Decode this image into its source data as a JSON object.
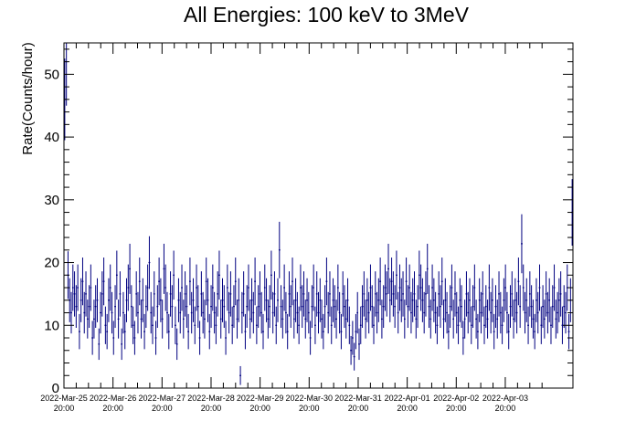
{
  "chart_data": {
    "type": "scatter",
    "title": "All Energies:  100 keV to 3MeV",
    "xlabel": "",
    "ylabel": "Rate(Counts/hour)",
    "ylim": [
      0,
      55
    ],
    "xlim": [
      0,
      10.38
    ],
    "x_unit": "days since 2022-Mar-25 20:00",
    "yticks": [
      0,
      10,
      20,
      30,
      40,
      50
    ],
    "xtick_labels": [
      {
        "date": "2022-Mar-25",
        "time": "20:00"
      },
      {
        "date": "2022-Mar-26",
        "time": "20:00"
      },
      {
        "date": "2022-Mar-27",
        "time": "20:00"
      },
      {
        "date": "2022-Mar-28",
        "time": "20:00"
      },
      {
        "date": "2022-Mar-29",
        "time": "20:00"
      },
      {
        "date": "2022-Mar-30",
        "time": "20:00"
      },
      {
        "date": "2022-Mar-31",
        "time": "20:00"
      },
      {
        "date": "2022-Apr-01",
        "time": "20:00"
      },
      {
        "date": "2022-Apr-02",
        "time": "20:00"
      },
      {
        "date": "2022-Apr-03",
        "time": "20:00"
      }
    ],
    "grid": false,
    "series": [
      {
        "name": "",
        "marker": "point with error bars",
        "color": "#000080",
        "values": [
          46,
          52,
          18,
          14,
          12,
          16,
          15,
          13,
          16,
          9,
          14,
          17,
          12,
          15,
          11,
          13,
          16,
          8,
          11,
          13,
          14,
          7,
          12,
          15,
          17,
          10,
          9,
          14,
          16,
          12,
          8,
          13,
          18,
          11,
          15,
          7,
          12,
          9,
          14,
          16,
          19,
          13,
          10,
          8,
          15,
          12,
          17,
          11,
          14,
          9,
          13,
          16,
          20,
          12,
          10,
          15,
          8,
          13,
          17,
          14,
          11,
          19,
          16,
          12,
          9,
          15,
          13,
          18,
          10,
          7,
          14,
          12,
          16,
          11,
          15,
          13,
          9,
          17,
          12,
          14,
          10,
          16,
          13,
          8,
          15,
          12,
          11,
          17,
          14,
          9,
          13,
          16,
          12,
          10,
          15,
          18,
          11,
          14,
          13,
          8,
          16,
          12,
          15,
          10,
          13,
          17,
          11,
          14,
          2,
          12,
          15,
          9,
          13,
          16,
          11,
          14,
          12,
          17,
          10,
          13,
          15,
          12,
          9,
          16,
          14,
          11,
          13,
          18,
          12,
          15,
          10,
          14,
          22,
          13,
          11,
          16,
          12,
          9,
          15,
          13,
          17,
          11,
          14,
          12,
          10,
          16,
          13,
          15,
          11,
          14,
          12,
          8,
          13,
          16,
          10,
          15,
          12,
          14,
          11,
          9,
          13,
          17,
          12,
          15,
          10,
          14,
          13,
          11,
          16,
          12,
          9,
          15,
          13,
          11,
          14,
          10,
          6,
          8,
          5,
          9,
          12,
          7,
          10,
          13,
          15,
          11,
          14,
          12,
          16,
          13,
          10,
          15,
          12,
          14,
          17,
          11,
          13,
          16,
          15,
          19,
          14,
          17,
          15,
          13,
          18,
          12,
          16,
          14,
          15,
          11,
          17,
          13,
          16,
          12,
          14,
          15,
          11,
          13,
          18,
          16,
          14,
          12,
          15,
          19,
          13,
          11,
          16,
          14,
          12,
          10,
          15,
          13,
          17,
          11,
          14,
          12,
          9,
          13,
          16,
          11,
          15,
          12,
          10,
          14,
          13,
          8,
          11,
          15,
          12,
          14,
          10,
          13,
          16,
          11,
          9,
          14,
          12,
          15,
          10,
          13,
          11,
          16,
          12,
          14,
          9,
          13,
          11,
          15,
          12,
          10,
          14,
          16,
          12,
          9,
          13,
          15,
          11,
          14,
          12,
          17,
          13,
          23,
          16,
          12,
          14,
          10,
          15,
          13,
          11,
          9,
          14,
          12,
          16,
          10,
          13,
          11,
          15,
          12,
          14,
          10,
          13,
          16,
          11,
          12,
          14,
          15,
          10,
          13,
          12,
          16,
          9,
          14,
          28
        ],
        "errors": [
          6.5,
          7.0,
          3.8,
          3.5,
          3.3,
          3.7,
          3.6,
          3.4,
          3.7,
          2.8,
          3.5,
          3.8,
          3.3,
          3.6,
          3.1,
          3.4,
          3.7,
          2.7,
          3.1,
          3.4,
          3.5,
          2.5,
          3.3,
          3.6,
          3.8,
          3.0,
          2.8,
          3.5,
          3.7,
          3.3,
          2.7,
          3.4,
          3.9,
          3.1,
          3.6,
          2.5,
          3.3,
          2.8,
          3.5,
          3.7,
          4.0,
          3.4,
          3.0,
          2.7,
          3.6,
          3.3,
          3.8,
          3.1,
          3.5,
          2.8,
          3.4,
          3.7,
          4.2,
          3.3,
          3.0,
          3.6,
          2.7,
          3.4,
          3.8,
          3.5,
          3.1,
          4.0,
          3.7,
          3.3,
          2.8,
          3.6,
          3.4,
          3.9,
          3.0,
          2.5,
          3.5,
          3.3,
          3.7,
          3.1,
          3.6,
          3.4,
          2.8,
          3.8,
          3.3,
          3.5,
          3.0,
          3.7,
          3.4,
          2.7,
          3.6,
          3.3,
          3.1,
          3.8,
          3.5,
          2.8,
          3.4,
          3.7,
          3.3,
          3.0,
          3.6,
          3.9,
          3.1,
          3.5,
          3.4,
          2.7,
          3.7,
          3.3,
          3.6,
          3.0,
          3.4,
          3.8,
          3.1,
          3.5,
          1.5,
          3.3,
          3.6,
          2.8,
          3.4,
          3.7,
          3.1,
          3.5,
          3.3,
          3.8,
          3.0,
          3.4,
          3.6,
          3.3,
          2.8,
          3.7,
          3.5,
          3.1,
          3.4,
          3.9,
          3.3,
          3.6,
          3.0,
          3.5,
          4.5,
          3.4,
          3.1,
          3.7,
          3.3,
          2.8,
          3.6,
          3.4,
          3.8,
          3.1,
          3.5,
          3.3,
          3.0,
          3.7,
          3.4,
          3.6,
          3.1,
          3.5,
          3.3,
          2.7,
          3.4,
          3.7,
          3.0,
          3.6,
          3.3,
          3.5,
          3.1,
          2.8,
          3.4,
          3.8,
          3.3,
          3.6,
          3.0,
          3.5,
          3.4,
          3.1,
          3.7,
          3.3,
          2.8,
          3.6,
          3.4,
          3.1,
          3.5,
          3.0,
          2.3,
          2.7,
          2.2,
          2.8,
          3.3,
          2.5,
          3.0,
          3.4,
          3.6,
          3.1,
          3.5,
          3.3,
          3.7,
          3.4,
          3.0,
          3.6,
          3.3,
          3.5,
          3.8,
          3.1,
          3.4,
          3.7,
          3.6,
          4.0,
          3.5,
          3.8,
          3.6,
          3.4,
          3.9,
          3.3,
          3.7,
          3.5,
          3.6,
          3.1,
          3.8,
          3.4,
          3.7,
          3.3,
          3.5,
          3.6,
          3.1,
          3.4,
          3.9,
          3.7,
          3.5,
          3.3,
          3.6,
          4.0,
          3.4,
          3.1,
          3.7,
          3.5,
          3.3,
          3.0,
          3.6,
          3.4,
          3.8,
          3.1,
          3.5,
          3.3,
          2.8,
          3.4,
          3.7,
          3.1,
          3.6,
          3.3,
          3.0,
          3.5,
          3.4,
          2.7,
          3.1,
          3.6,
          3.3,
          3.5,
          3.0,
          3.4,
          3.7,
          3.1,
          2.8,
          3.5,
          3.3,
          3.6,
          3.0,
          3.4,
          3.1,
          3.7,
          3.3,
          3.5,
          2.8,
          3.4,
          3.1,
          3.6,
          3.3,
          3.0,
          3.5,
          3.7,
          3.3,
          2.8,
          3.4,
          3.6,
          3.1,
          3.5,
          3.3,
          3.8,
          3.4,
          4.7,
          3.7,
          3.3,
          3.5,
          3.0,
          3.6,
          3.4,
          3.1,
          2.8,
          3.5,
          3.3,
          3.7,
          3.0,
          3.4,
          3.1,
          3.6,
          3.3,
          3.5,
          3.0,
          3.4,
          3.7,
          3.1,
          3.3,
          3.5,
          3.6,
          3.0,
          3.4,
          3.3,
          3.7,
          2.8,
          3.5,
          5.3
        ]
      }
    ]
  }
}
